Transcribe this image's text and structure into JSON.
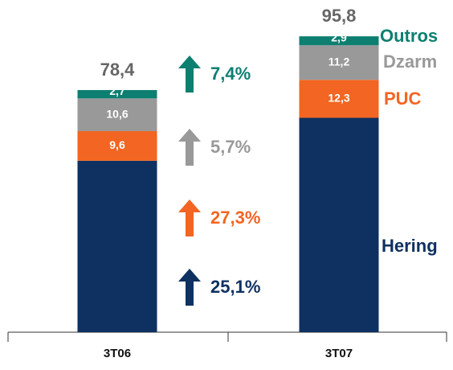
{
  "chart_data": {
    "type": "stacked_bar",
    "categories": [
      "3T06",
      "3T07"
    ],
    "series": [
      {
        "name": "Hering",
        "color": "#0e3161",
        "values": [
          55.5,
          69.4
        ],
        "value_labels": [
          "55,5",
          "69,4"
        ],
        "growth": 25.1,
        "growth_label": "25,1%"
      },
      {
        "name": "PUC",
        "color": "#f26522",
        "values": [
          9.6,
          12.3
        ],
        "value_labels": [
          "9,6",
          "12,3"
        ],
        "growth": 27.3,
        "growth_label": "27,3%"
      },
      {
        "name": "Dzarm",
        "color": "#999999",
        "values": [
          10.6,
          11.2
        ],
        "value_labels": [
          "10,6",
          "11,2"
        ],
        "growth": 5.7,
        "growth_label": "5,7%"
      },
      {
        "name": "Outros",
        "color": "#0d7f70",
        "values": [
          2.7,
          2.9
        ],
        "value_labels": [
          "2,7",
          "2,9"
        ],
        "growth": 7.4,
        "growth_label": "7,4%"
      }
    ],
    "totals": [
      78.4,
      95.8
    ],
    "total_labels": [
      "78,4",
      "95,8"
    ],
    "ylim": [
      0,
      100
    ]
  }
}
